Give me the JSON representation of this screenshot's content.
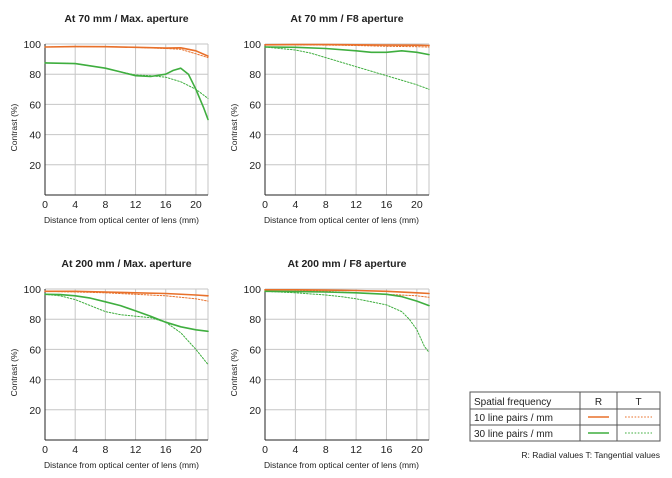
{
  "colors": {
    "lp10": "#e8702a",
    "lp30": "#3fae3f",
    "grid": "#c6c6c6",
    "axis": "#222222"
  },
  "chart_data": [
    {
      "type": "line",
      "title": "At 70 mm / Max. aperture",
      "xlabel": "Distance from optical center of lens (mm)",
      "ylabel": "Contrast (%)",
      "xlim": [
        0,
        21.6
      ],
      "ylim": [
        0,
        100
      ],
      "xticks": [
        0,
        4,
        8,
        12,
        16,
        20
      ],
      "yticks": [
        20,
        40,
        60,
        80,
        100
      ],
      "grid": true,
      "series": [
        {
          "name": "10 line pairs / mm R",
          "style": "solid",
          "color": "lp10",
          "x": [
            0,
            4,
            8,
            12,
            16,
            18,
            20,
            21.6
          ],
          "y": [
            98,
            98.3,
            98.2,
            97.8,
            97.3,
            97.5,
            95.5,
            92
          ]
        },
        {
          "name": "10 line pairs / mm T",
          "style": "dotted",
          "color": "lp10",
          "x": [
            0,
            4,
            8,
            12,
            16,
            18,
            20,
            21.6
          ],
          "y": [
            98,
            98.3,
            98.2,
            97.8,
            97,
            96.5,
            93.5,
            91
          ]
        },
        {
          "name": "30 line pairs / mm R",
          "style": "solid",
          "color": "lp30",
          "x": [
            0,
            4,
            8,
            10,
            12,
            14,
            16,
            17,
            18,
            19,
            20,
            21,
            21.6
          ],
          "y": [
            87.5,
            87,
            84,
            81.5,
            79,
            78.5,
            80,
            82.5,
            84,
            80,
            70,
            58,
            50
          ]
        },
        {
          "name": "30 line pairs / mm T",
          "style": "dotted",
          "color": "lp30",
          "x": [
            0,
            4,
            8,
            10,
            12,
            14,
            16,
            18,
            20,
            21.6
          ],
          "y": [
            87.5,
            87,
            84,
            81.5,
            79.5,
            79,
            78,
            75,
            70,
            64
          ]
        }
      ]
    },
    {
      "type": "line",
      "title": "At 70 mm / F8 aperture",
      "xlabel": "Distance from optical center of lens (mm)",
      "ylabel": "Contrast (%)",
      "xlim": [
        0,
        21.6
      ],
      "ylim": [
        0,
        100
      ],
      "xticks": [
        0,
        4,
        8,
        12,
        16,
        20
      ],
      "yticks": [
        20,
        40,
        60,
        80,
        100
      ],
      "grid": true,
      "series": [
        {
          "name": "10 line pairs / mm R",
          "style": "solid",
          "color": "lp10",
          "x": [
            0,
            4,
            8,
            12,
            16,
            20,
            21.6
          ],
          "y": [
            99.5,
            99.6,
            99.6,
            99.5,
            99.3,
            99.2,
            99
          ]
        },
        {
          "name": "10 line pairs / mm T",
          "style": "dotted",
          "color": "lp10",
          "x": [
            0,
            4,
            8,
            12,
            16,
            20,
            21.6
          ],
          "y": [
            99.5,
            99.5,
            99.3,
            99,
            98.5,
            98.2,
            98
          ]
        },
        {
          "name": "30 line pairs / mm R",
          "style": "solid",
          "color": "lp30",
          "x": [
            0,
            4,
            8,
            12,
            14,
            16,
            18,
            20,
            21.6
          ],
          "y": [
            98,
            97.8,
            97,
            95.5,
            94.5,
            94.5,
            95.5,
            94.5,
            93
          ]
        },
        {
          "name": "30 line pairs / mm T",
          "style": "dotted",
          "color": "lp30",
          "x": [
            0,
            4,
            6,
            8,
            12,
            16,
            20,
            21.6
          ],
          "y": [
            98,
            96,
            94,
            91,
            85,
            79,
            73,
            70
          ]
        }
      ]
    },
    {
      "type": "line",
      "title": "At 200 mm / Max. aperture",
      "xlabel": "Distance from optical center of lens (mm)",
      "ylabel": "Contrast (%)",
      "xlim": [
        0,
        21.6
      ],
      "ylim": [
        0,
        100
      ],
      "xticks": [
        0,
        4,
        8,
        12,
        16,
        20
      ],
      "yticks": [
        20,
        40,
        60,
        80,
        100
      ],
      "grid": true,
      "series": [
        {
          "name": "10 line pairs / mm R",
          "style": "solid",
          "color": "lp10",
          "x": [
            0,
            4,
            8,
            12,
            16,
            20,
            21.6
          ],
          "y": [
            98.5,
            98.5,
            98,
            97.5,
            97,
            96,
            95.5
          ]
        },
        {
          "name": "10 line pairs / mm T",
          "style": "dotted",
          "color": "lp10",
          "x": [
            0,
            4,
            8,
            12,
            16,
            20,
            21.6
          ],
          "y": [
            98.5,
            98,
            97.5,
            96.5,
            95.5,
            93.5,
            92
          ]
        },
        {
          "name": "30 line pairs / mm R",
          "style": "solid",
          "color": "lp30",
          "x": [
            0,
            2,
            4,
            6,
            8,
            10,
            12,
            14,
            16,
            18,
            20,
            21.6
          ],
          "y": [
            96.5,
            96.3,
            95.5,
            94,
            91.5,
            89,
            85.5,
            82,
            78,
            75,
            73,
            72
          ]
        },
        {
          "name": "30 line pairs / mm T",
          "style": "dotted",
          "color": "lp30",
          "x": [
            0,
            2,
            4,
            6,
            8,
            10,
            12,
            14,
            16,
            18,
            20,
            21.6
          ],
          "y": [
            96.5,
            95.5,
            93,
            89,
            85,
            83,
            82,
            81,
            78,
            71,
            60,
            50
          ]
        }
      ]
    },
    {
      "type": "line",
      "title": "At 200 mm / F8 aperture",
      "xlabel": "Distance from optical center of lens (mm)",
      "ylabel": "Contrast (%)",
      "xlim": [
        0,
        21.6
      ],
      "ylim": [
        0,
        100
      ],
      "xticks": [
        0,
        4,
        8,
        12,
        16,
        20
      ],
      "yticks": [
        20,
        40,
        60,
        80,
        100
      ],
      "grid": true,
      "series": [
        {
          "name": "10 line pairs / mm R",
          "style": "solid",
          "color": "lp10",
          "x": [
            0,
            4,
            8,
            12,
            16,
            20,
            21.6
          ],
          "y": [
            99.5,
            99.5,
            99.3,
            99,
            98.5,
            97.5,
            97
          ]
        },
        {
          "name": "10 line pairs / mm T",
          "style": "dotted",
          "color": "lp10",
          "x": [
            0,
            4,
            8,
            12,
            16,
            20,
            21.6
          ],
          "y": [
            99.5,
            99.2,
            98.5,
            97.5,
            96.5,
            95.5,
            94.5
          ]
        },
        {
          "name": "30 line pairs / mm R",
          "style": "solid",
          "color": "lp30",
          "x": [
            0,
            4,
            8,
            12,
            16,
            18,
            20,
            21.6
          ],
          "y": [
            98.5,
            98.3,
            98,
            97.5,
            96.5,
            95,
            92,
            89
          ]
        },
        {
          "name": "30 line pairs / mm T",
          "style": "dotted",
          "color": "lp30",
          "x": [
            0,
            4,
            8,
            10,
            12,
            14,
            16,
            18,
            19,
            20,
            21,
            21.6
          ],
          "y": [
            98.5,
            97.5,
            96,
            95,
            93.5,
            91.5,
            89.5,
            85,
            80,
            73,
            62,
            58
          ]
        }
      ]
    }
  ],
  "legend": {
    "header": "Spatial frequency",
    "col_r": "R",
    "col_t": "T",
    "rows": [
      "10 line pairs / mm",
      "30 line pairs / mm"
    ],
    "note": "R: Radial values  T: Tangential values"
  }
}
